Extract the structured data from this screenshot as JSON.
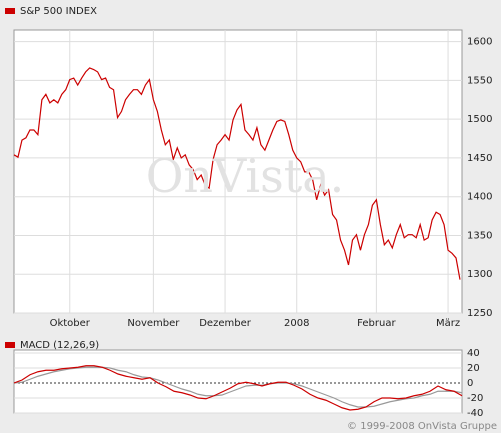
{
  "chart_data": [
    {
      "type": "line",
      "watermark": "OnVista.",
      "categories": [
        null,
        null,
        null,
        null,
        null,
        null,
        null,
        null,
        null,
        null,
        null,
        null,
        null,
        null,
        "Oktober",
        null,
        null,
        null,
        null,
        null,
        null,
        null,
        null,
        null,
        null,
        null,
        null,
        null,
        null,
        null,
        null,
        null,
        null,
        null,
        null,
        "November",
        null,
        null,
        null,
        null,
        null,
        null,
        null,
        null,
        null,
        null,
        null,
        null,
        null,
        null,
        null,
        null,
        null,
        "Dezember",
        null,
        null,
        null,
        null,
        null,
        null,
        null,
        null,
        null,
        null,
        null,
        null,
        null,
        null,
        null,
        null,
        null,
        "2008",
        null,
        null,
        null,
        null,
        null,
        null,
        null,
        null,
        null,
        null,
        null,
        null,
        null,
        null,
        null,
        null,
        null,
        null,
        null,
        "Februar",
        null,
        null,
        null,
        null,
        null,
        null,
        null,
        null,
        null,
        null,
        null,
        null,
        null,
        null,
        null,
        null,
        null,
        "März",
        null,
        null,
        null
      ],
      "series": [
        {
          "name": "S&P 500 INDEX",
          "color": "#cc0000",
          "values": [
            1454,
            1451,
            1473,
            1476,
            1486,
            1486,
            1480,
            1525,
            1532,
            1521,
            1525,
            1521,
            1532,
            1538,
            1551,
            1553,
            1544,
            1553,
            1561,
            1566,
            1564,
            1561,
            1551,
            1553,
            1541,
            1538,
            1502,
            1510,
            1525,
            1532,
            1538,
            1538,
            1532,
            1544,
            1551,
            1525,
            1510,
            1486,
            1467,
            1473,
            1448,
            1463,
            1450,
            1454,
            1441,
            1435,
            1422,
            1428,
            1415,
            1411,
            1448,
            1467,
            1473,
            1480,
            1473,
            1499,
            1512,
            1519,
            1486,
            1480,
            1473,
            1489,
            1467,
            1460,
            1473,
            1486,
            1497,
            1499,
            1497,
            1480,
            1460,
            1450,
            1445,
            1432,
            1432,
            1422,
            1396,
            1415,
            1402,
            1409,
            1377,
            1370,
            1344,
            1331,
            1312,
            1344,
            1351,
            1331,
            1351,
            1364,
            1389,
            1396,
            1364,
            1338,
            1344,
            1334,
            1351,
            1364,
            1347,
            1351,
            1351,
            1347,
            1364,
            1344,
            1347,
            1370,
            1380,
            1377,
            1364,
            1331,
            1327,
            1321,
            1293
          ]
        }
      ],
      "ylim": [
        1250,
        1615
      ],
      "yticks": [
        1250,
        1300,
        1350,
        1400,
        1450,
        1500,
        1550,
        1600
      ],
      "grid": true
    },
    {
      "type": "line",
      "series": [
        {
          "name": "MACD (12,26,9)",
          "color": "#cc0000",
          "values": [
            0,
            4,
            11,
            15,
            17,
            17,
            19,
            20,
            21,
            23,
            23,
            21,
            17,
            12,
            9,
            7,
            5,
            7,
            0,
            -5,
            -11,
            -13,
            -16,
            -20,
            -21,
            -17,
            -12,
            -7,
            -1,
            1,
            -1,
            -4,
            -1,
            1,
            1,
            -3,
            -8,
            -15,
            -20,
            -23,
            -28,
            -33,
            -36,
            -35,
            -32,
            -25,
            -20,
            -20,
            -21,
            -20,
            -17,
            -15,
            -11,
            -4,
            -9,
            -11,
            -17
          ]
        },
        {
          "color": "#999999",
          "values": [
            0,
            1,
            5,
            9,
            12,
            15,
            17,
            19,
            20,
            21,
            21,
            21,
            20,
            17,
            15,
            11,
            8,
            7,
            4,
            0,
            -4,
            -8,
            -11,
            -15,
            -17,
            -17,
            -16,
            -12,
            -8,
            -4,
            -3,
            -3,
            -1,
            0,
            0,
            -1,
            -4,
            -8,
            -12,
            -16,
            -20,
            -25,
            -29,
            -32,
            -32,
            -31,
            -28,
            -25,
            -23,
            -21,
            -20,
            -17,
            -15,
            -11,
            -11,
            -11,
            -13
          ]
        }
      ],
      "ylim": [
        -40,
        44
      ],
      "yticks": [
        -40,
        -20,
        0,
        20,
        40
      ],
      "grid": true
    }
  ],
  "footer": "© 1999-2008 OnVista Gruppe"
}
